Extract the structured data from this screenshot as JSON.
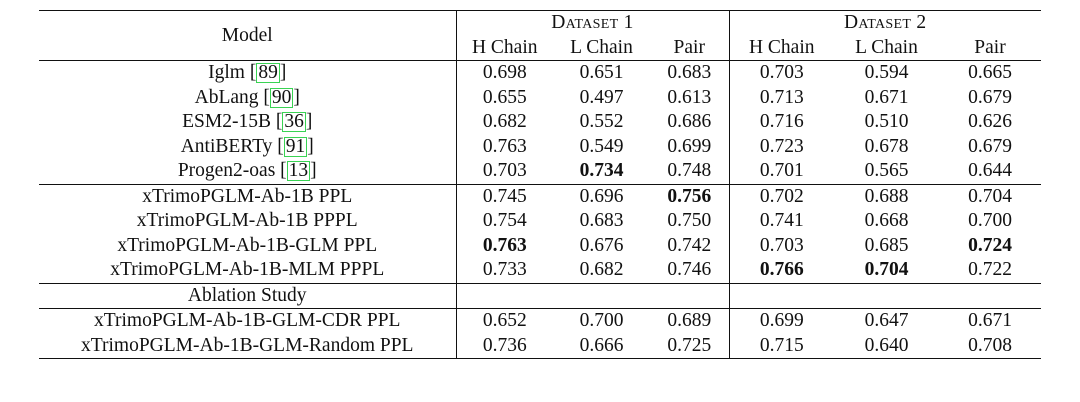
{
  "header": {
    "model": "Model",
    "dataset1": "Dataset 1",
    "dataset2": "Dataset 2",
    "subcols": [
      "H Chain",
      "L Chain",
      "Pair",
      "H Chain",
      "L Chain",
      "Pair"
    ]
  },
  "groups": [
    {
      "rows": [
        {
          "model": "Iglm",
          "ref": "89",
          "values": [
            "0.698",
            "0.651",
            "0.683",
            "0.703",
            "0.594",
            "0.665"
          ],
          "bold": []
        },
        {
          "model": "AbLang",
          "ref": "90",
          "values": [
            "0.655",
            "0.497",
            "0.613",
            "0.713",
            "0.671",
            "0.679"
          ],
          "bold": []
        },
        {
          "model": "ESM2-15B",
          "ref": "36",
          "values": [
            "0.682",
            "0.552",
            "0.686",
            "0.716",
            "0.510",
            "0.626"
          ],
          "bold": []
        },
        {
          "model": "AntiBERTy",
          "ref": "91",
          "values": [
            "0.763",
            "0.549",
            "0.699",
            "0.723",
            "0.678",
            "0.679"
          ],
          "bold": []
        },
        {
          "model": "Progen2-oas",
          "ref": "13",
          "values": [
            "0.703",
            "0.734",
            "0.748",
            "0.701",
            "0.565",
            "0.644"
          ],
          "bold": [
            1
          ]
        }
      ]
    },
    {
      "rows": [
        {
          "model": "xTrimoPGLM-Ab-1B PPL",
          "values": [
            "0.745",
            "0.696",
            "0.756",
            "0.702",
            "0.688",
            "0.704"
          ],
          "bold": [
            2
          ]
        },
        {
          "model": "xTrimoPGLM-Ab-1B PPPL",
          "values": [
            "0.754",
            "0.683",
            "0.750",
            "0.741",
            "0.668",
            "0.700"
          ],
          "bold": []
        },
        {
          "model": "xTrimoPGLM-Ab-1B-GLM PPL",
          "values": [
            "0.763",
            "0.676",
            "0.742",
            "0.703",
            "0.685",
            "0.724"
          ],
          "bold": [
            0,
            5
          ]
        },
        {
          "model": "xTrimoPGLM-Ab-1B-MLM PPPL",
          "values": [
            "0.733",
            "0.682",
            "0.746",
            "0.766",
            "0.704",
            "0.722"
          ],
          "bold": [
            3,
            4
          ]
        }
      ]
    },
    {
      "section_title": "Ablation Study",
      "rows": [
        {
          "model": "xTrimoPGLM-Ab-1B-GLM-CDR PPL",
          "values": [
            "0.652",
            "0.700",
            "0.689",
            "0.699",
            "0.647",
            "0.671"
          ],
          "bold": []
        },
        {
          "model": "xTrimoPGLM-Ab-1B-GLM-Random PPL",
          "values": [
            "0.736",
            "0.666",
            "0.725",
            "0.715",
            "0.640",
            "0.708"
          ],
          "bold": []
        }
      ]
    }
  ]
}
